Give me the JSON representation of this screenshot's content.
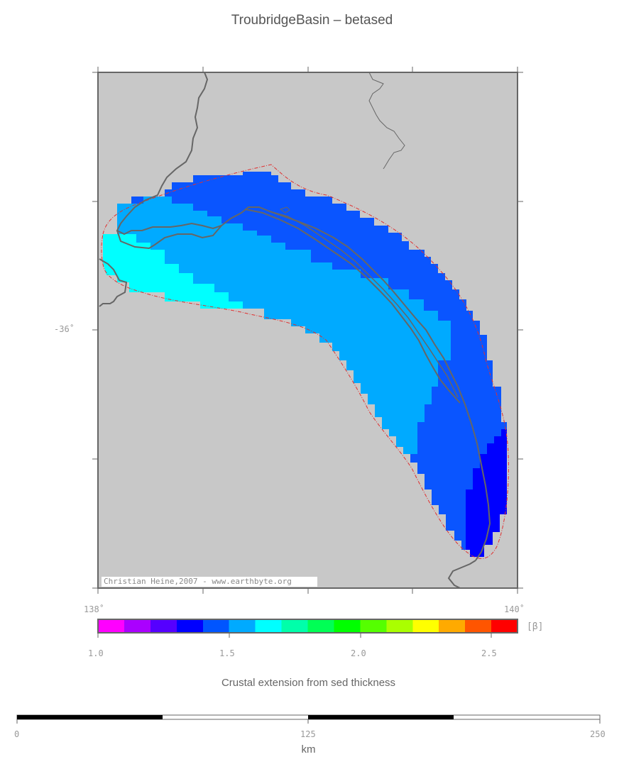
{
  "title": "TroubridgeBasin – betased",
  "map": {
    "lat_label": "-36˚",
    "lon_labels": [
      "138˚",
      "140˚"
    ],
    "credit": "Christian Heine,2007 - www.earthbyte.org",
    "colors": {
      "land": "#c8c8c8",
      "coast": "#666666",
      "outline": "#e03030",
      "beta_1_4": "#0a55ff",
      "beta_1_5": "#00aaff",
      "beta_1_6": "#00ffff",
      "beta_1_3": "#0000ff"
    }
  },
  "colorbar": {
    "unit_label": "[β]",
    "tick_labels": [
      "1.0",
      "1.5",
      "2.0",
      "2.5"
    ],
    "colors": [
      "#ff00ff",
      "#aa00ff",
      "#5500ff",
      "#0000ff",
      "#0055ff",
      "#00aaff",
      "#00ffff",
      "#00ffaa",
      "#00ff55",
      "#00ff00",
      "#55ff00",
      "#aaff00",
      "#ffff00",
      "#ffaa00",
      "#ff5500",
      "#ff0000"
    ],
    "caption": "Crustal extension from sed thickness"
  },
  "scalebar": {
    "tick_labels": [
      "0",
      "125",
      "250"
    ],
    "unit": "km"
  }
}
